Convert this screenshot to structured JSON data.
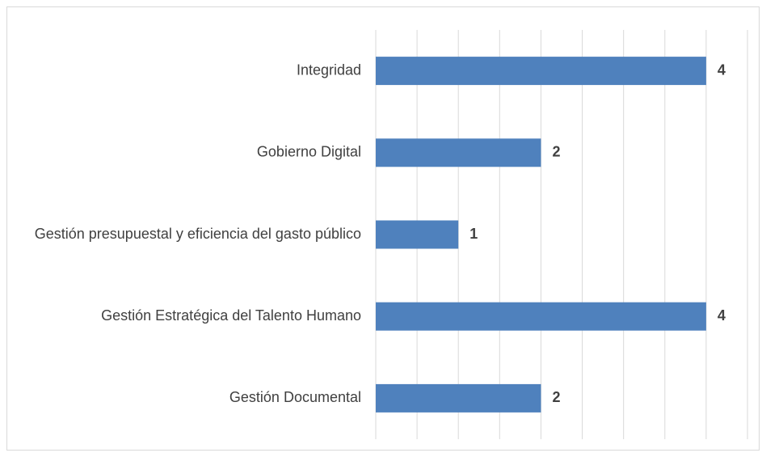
{
  "chart_data": {
    "type": "bar",
    "orientation": "horizontal",
    "categories": [
      "Integridad",
      "Gobierno Digital",
      "Gestión presupuestal y eficiencia del gasto público",
      "Gestión Estratégica del Talento Humano",
      "Gestión Documental"
    ],
    "values": [
      4,
      2,
      1,
      4,
      2
    ],
    "color": "#4f81bd",
    "xlim": [
      0,
      4.5
    ],
    "xticks": [
      0,
      0.5,
      1,
      1.5,
      2,
      2.5,
      3,
      3.5,
      4,
      4.5
    ],
    "grid": true
  }
}
